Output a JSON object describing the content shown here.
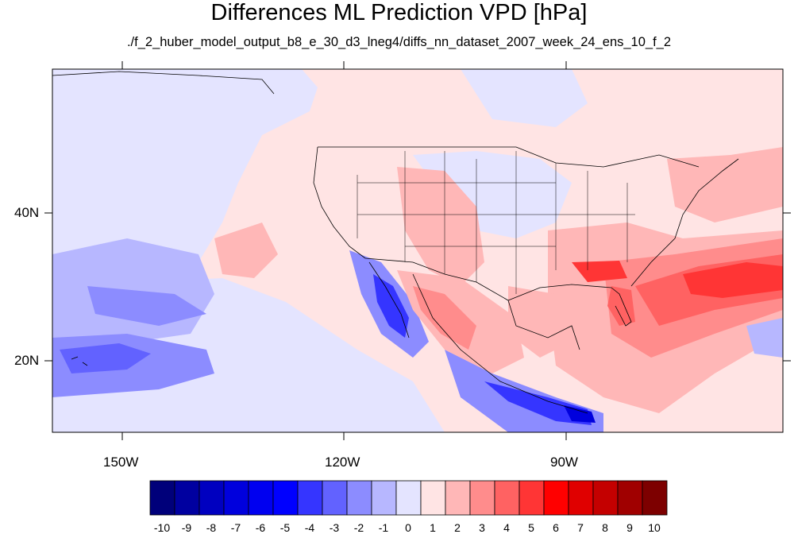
{
  "title": "Differences ML Prediction VPD [hPa]",
  "subtitle": "./f_2_huber_model_output_b8_e_30_d3_lneg4/diffs_nn_dataset_2007_week_24_ens_10_f_2",
  "axes": {
    "lon_ticks": [
      "150W",
      "120W",
      "90W"
    ],
    "lat_ticks": [
      "40N",
      "20N"
    ]
  },
  "colorbar": {
    "labels": [
      "-10",
      "-9",
      "-8",
      "-7",
      "-6",
      "-5",
      "-4",
      "-3",
      "-2",
      "-1",
      "0",
      "1",
      "2",
      "3",
      "4",
      "5",
      "6",
      "7",
      "8",
      "9",
      "10"
    ],
    "colors": [
      "#00007a",
      "#0000a0",
      "#0000c0",
      "#0000dd",
      "#0000f0",
      "#0000ff",
      "#3535ff",
      "#6262ff",
      "#8c8cff",
      "#b7b7ff",
      "#e4e4ff",
      "#ffe4e4",
      "#ffb7b7",
      "#ff8c8c",
      "#ff6262",
      "#ff3535",
      "#ff0000",
      "#e00000",
      "#c40000",
      "#a00000",
      "#7d0000"
    ]
  },
  "chart_data": {
    "type": "heatmap",
    "title": "Differences ML Prediction VPD [hPa]",
    "variable": "VPD difference",
    "units": "hPa",
    "lon_range": [
      -159,
      -60
    ],
    "lat_range": [
      10,
      59
    ],
    "lon_ticks": [
      "150W",
      "120W",
      "90W"
    ],
    "lat_ticks": [
      "40N",
      "20N"
    ],
    "colorbar_range": [
      -10,
      10
    ],
    "colorbar_step": 1,
    "regions": [
      {
        "area": "Pacific west of Baja California (coastal strip)",
        "value": -6
      },
      {
        "area": "Pacific west of mainland Mexico coast",
        "value": -7
      },
      {
        "area": "Central Pacific near Hawaii",
        "value": -3
      },
      {
        "area": "Eastern tropical Pacific band",
        "value": -2
      },
      {
        "area": "Southeastern US (Georgia/Alabama)",
        "value": 5
      },
      {
        "area": "Western Atlantic off southeast US",
        "value": 6
      },
      {
        "area": "Florida peninsula",
        "value": 4
      },
      {
        "area": "Gulf of Mexico",
        "value": 3
      },
      {
        "area": "Interior Mexico highlands",
        "value": 3
      },
      {
        "area": "Northeast US / Atlantic Canada",
        "value": 2
      },
      {
        "area": "Central Great Plains",
        "value": -1
      },
      {
        "area": "Open ocean background",
        "value": 0
      }
    ]
  }
}
